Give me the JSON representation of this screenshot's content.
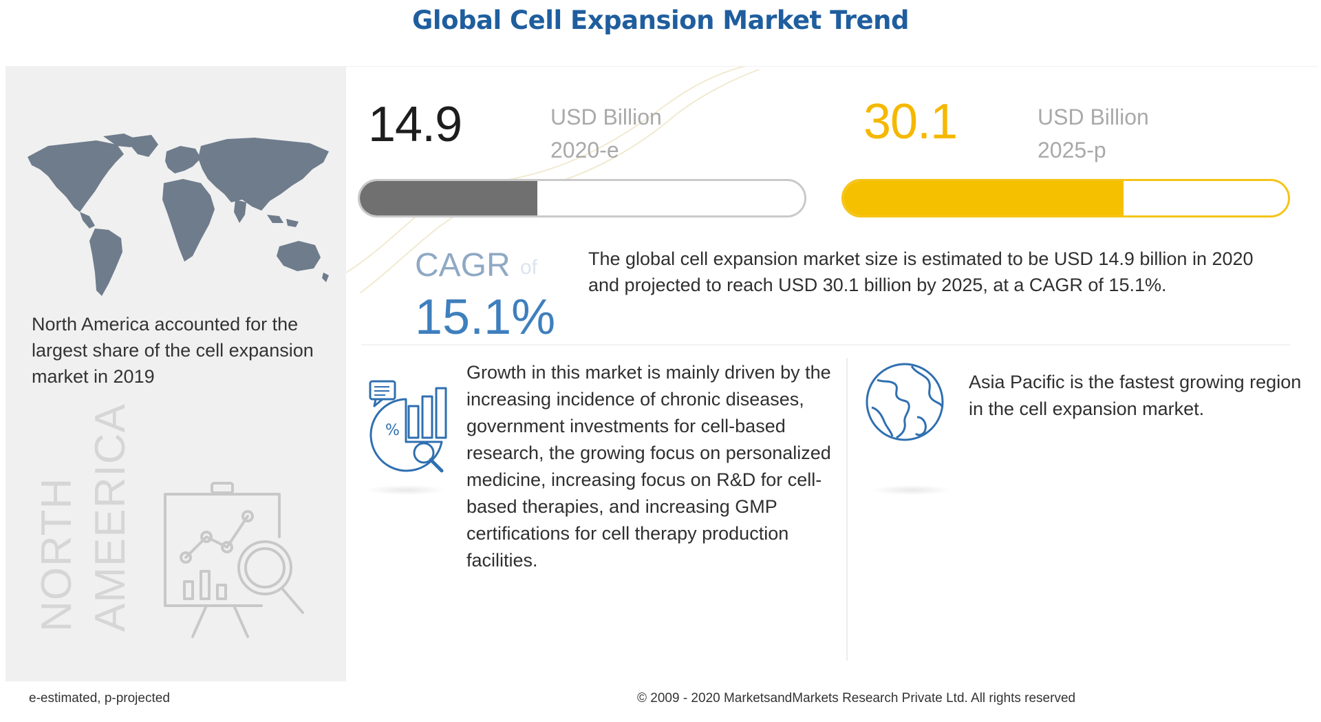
{
  "title": "Global Cell Expansion Market Trend",
  "left_panel": {
    "statement": "North America accounted for the largest share of the cell expansion market in 2019",
    "region_label_line1": "NORTH",
    "region_label_line2": "AMEERICA"
  },
  "market_2020": {
    "value": "14.9",
    "unit": "USD Billion",
    "year": "2020-e",
    "fill_fraction": 0.4,
    "color": "#707070"
  },
  "market_2025": {
    "value": "30.1",
    "unit": "USD Billion",
    "year": "2025-p",
    "fill_fraction": 0.63,
    "color": "#f5c000"
  },
  "cagr": {
    "label": "CAGR",
    "of": "of",
    "value": "15.1%"
  },
  "summary": "The global cell expansion market size is estimated to be USD 14.9 billion in 2020 and projected to reach USD 30.1 billion by 2025, at a CAGR of 15.1%.",
  "drivers": {
    "icon": "analytics-pie-chart-icon",
    "text": "Growth in this market is mainly driven by the increasing incidence of chronic diseases, government investments for cell-based research, the growing focus on personalized medicine, increasing focus on R&D for cell-based therapies, and increasing GMP certifications for cell therapy production facilities."
  },
  "fastest_region": {
    "icon": "globe-icon",
    "text": "Asia Pacific is the fastest growing region in the cell expansion market."
  },
  "footer": {
    "footnote": "e-estimated, p-projected",
    "copyright": "© 2009 - 2020 MarketsandMarkets Research Private Ltd. All rights reserved"
  },
  "colors": {
    "title": "#1f5e9e",
    "accent_blue": "#3f7fbd",
    "accent_yellow": "#f5c000",
    "map": "#6e7c8c"
  }
}
